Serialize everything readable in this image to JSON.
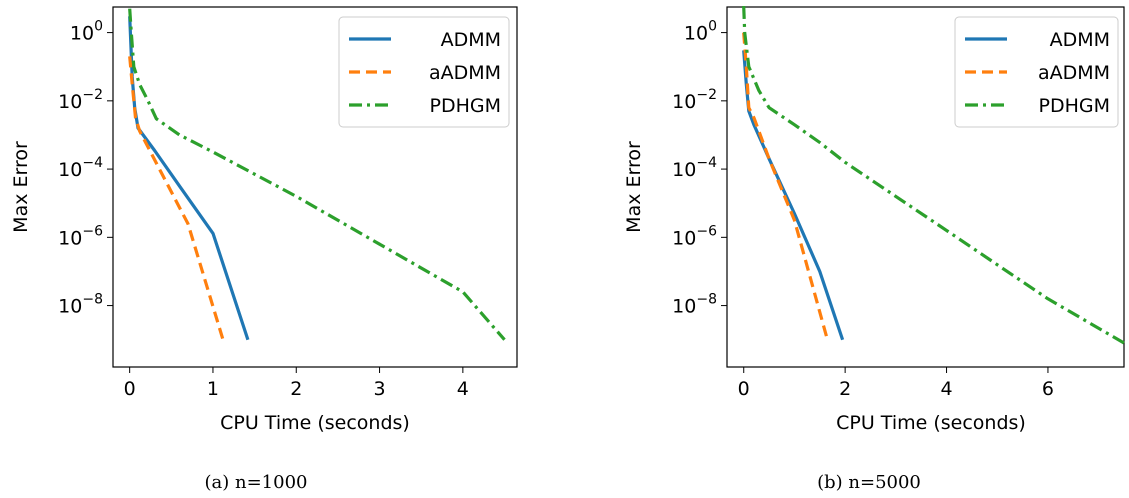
{
  "chart_data": [
    {
      "type": "line",
      "caption": "(a) n=1000",
      "xlabel": "CPU Time (seconds)",
      "ylabel": "Max Error",
      "xlim": [
        -0.2,
        4.65
      ],
      "ylim_log10": [
        -9.8,
        0.75
      ],
      "y_scale": "log",
      "xticks": [
        0,
        1,
        2,
        3,
        4
      ],
      "xtick_labels": [
        "0",
        "1",
        "2",
        "3",
        "4"
      ],
      "yticks_exp": [
        0,
        -2,
        -4,
        -6,
        -8
      ],
      "ytick_base": "10",
      "ytick_exp_labels": [
        "0",
        "−2",
        "−4",
        "−6",
        "−8"
      ],
      "legend_position": "upper-right",
      "series": [
        {
          "name": "ADMM",
          "color": "#1f77b4",
          "style": "solid",
          "points": [
            [
              0.0,
              3.0
            ],
            [
              0.03,
              0.05
            ],
            [
              0.06,
              0.0063
            ],
            [
              0.1,
              0.0016
            ],
            [
              0.3,
              0.00035
            ],
            [
              0.6,
              3.16e-05
            ],
            [
              1.0,
              1.3e-06
            ],
            [
              1.42,
              1e-09
            ]
          ]
        },
        {
          "name": "aADMM",
          "color": "#ff7f0e",
          "style": "dashed",
          "points": [
            [
              0.0,
              0.2
            ],
            [
              0.03,
              0.031
            ],
            [
              0.07,
              0.0032
            ],
            [
              0.12,
              0.0013
            ],
            [
              0.4,
              6.3e-05
            ],
            [
              0.7,
              2.5e-06
            ],
            [
              1.12,
              1e-09
            ]
          ]
        },
        {
          "name": "PDHGM",
          "color": "#2ca02c",
          "style": "dashdot",
          "points": [
            [
              0.0,
              5.0
            ],
            [
              0.02,
              1.0
            ],
            [
              0.05,
              0.1
            ],
            [
              0.12,
              0.03
            ],
            [
              0.22,
              0.01
            ],
            [
              0.32,
              0.003
            ],
            [
              0.6,
              0.001
            ],
            [
              1.0,
              0.000316
            ],
            [
              2.0,
              1.58e-05
            ],
            [
              3.0,
              6.31e-07
            ],
            [
              4.0,
              2.51e-08
            ],
            [
              4.5,
              1e-09
            ]
          ]
        }
      ]
    },
    {
      "type": "line",
      "caption": "(b) n=5000",
      "xlabel": "CPU Time (seconds)",
      "ylabel": "Max Error",
      "xlim": [
        -0.33,
        7.5
      ],
      "ylim_log10": [
        -9.8,
        0.75
      ],
      "y_scale": "log",
      "xticks": [
        0,
        2,
        4,
        6
      ],
      "xtick_labels": [
        "0",
        "2",
        "4",
        "6"
      ],
      "yticks_exp": [
        0,
        -2,
        -4,
        -6,
        -8
      ],
      "ytick_base": "10",
      "ytick_exp_labels": [
        "0",
        "−2",
        "−4",
        "−6",
        "−8"
      ],
      "legend_position": "upper-right",
      "series": [
        {
          "name": "ADMM",
          "color": "#1f77b4",
          "style": "solid",
          "points": [
            [
              0.0,
              0.3
            ],
            [
              0.05,
              0.031
            ],
            [
              0.1,
              0.005
            ],
            [
              0.2,
              0.002
            ],
            [
              0.5,
              0.0002
            ],
            [
              1.0,
              5e-06
            ],
            [
              1.5,
              1e-07
            ],
            [
              1.95,
              1e-09
            ]
          ]
        },
        {
          "name": "aADMM",
          "color": "#ff7f0e",
          "style": "dashed",
          "points": [
            [
              0.0,
              1.0
            ],
            [
              0.05,
              0.1
            ],
            [
              0.1,
              0.0063
            ],
            [
              0.2,
              0.0032
            ],
            [
              0.5,
              0.0002
            ],
            [
              1.0,
              3.2e-06
            ],
            [
              1.65,
              1e-09
            ]
          ]
        },
        {
          "name": "PDHGM",
          "color": "#2ca02c",
          "style": "dashdot",
          "points": [
            [
              0.0,
              6.0
            ],
            [
              0.02,
              1.0
            ],
            [
              0.1,
              0.1
            ],
            [
              0.3,
              0.02
            ],
            [
              0.5,
              0.0063
            ],
            [
              1.0,
              0.002
            ],
            [
              1.5,
              0.0006
            ],
            [
              2.0,
              0.000158
            ],
            [
              3.0,
              1.58e-05
            ],
            [
              4.0,
              1.6e-06
            ],
            [
              5.0,
              1.58e-07
            ],
            [
              6.0,
              1.58e-08
            ],
            [
              7.5,
              8e-10
            ]
          ]
        }
      ]
    }
  ]
}
